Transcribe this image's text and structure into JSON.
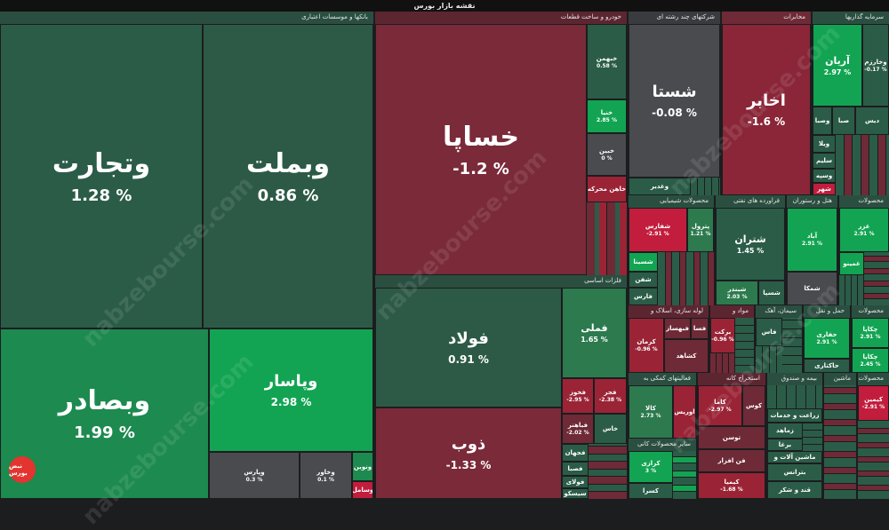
{
  "header": {
    "title": "نقشه بازار بورس"
  },
  "watermark": "nabzebourse.com",
  "logo_text": "نبض بورس",
  "colors": {
    "strong_green": "#0fa34f",
    "green": "#2c7a4e",
    "dark_green": "#2b5c48",
    "dark_red": "#6e2a36",
    "red": "#9a2436",
    "strong_red": "#c21d3c",
    "neutral": "#4a4b4f"
  },
  "sectors": {
    "banks": "بانکها و موسسات اعتباری",
    "auto": "خودرو و ساخت قطعات",
    "metals": "فلزات اساسی",
    "multi": "شرکتهای چند رشته ای",
    "telecom": "مخابرات",
    "invest": "سرمایه گذاریها",
    "chemical": "محصولات شیمیایی",
    "oil": "فراورده های نفتی",
    "hotel": "هتل و رستوران",
    "products": "محصولات",
    "pipe": "لوله سازی، اسلاک و",
    "material": "مواد و",
    "cement": "سیمان، آهک",
    "transport": "حمل و نقل",
    "products2": "محصولات",
    "auxiliary": "فعالیتهای کمکی به",
    "mining": "استخراج کانه",
    "insurance": "بیمه و صندوق",
    "machinery": "ماشین",
    "products3": "محصولات",
    "nonmetal": "سایر محصولات کانی",
    "agri": "زراعت و خدمات",
    "mach2": "ماشین آلات و",
    "sugar": "قند و شکر"
  },
  "tiles": {
    "vtejarat": {
      "name": "وتجارت",
      "chg": "1.28 %"
    },
    "vbemellat": {
      "name": "وبملت",
      "chg": "0.86 %"
    },
    "vbesader": {
      "name": "وبصادر",
      "chg": "1.99 %"
    },
    "vpasar": {
      "name": "وپاسار",
      "chg": "2.98 %"
    },
    "vpars": {
      "name": "وپارس",
      "chg": "0.3 %"
    },
    "vkhavar": {
      "name": "وخاور",
      "chg": "0.1 %"
    },
    "vnovin": {
      "name": "ونوین"
    },
    "vamal": {
      "name": "وسامل"
    },
    "khsapa": {
      "name": "خساپا",
      "chg": "-1.2 %"
    },
    "khbahman": {
      "name": "خبهمن",
      "chg": "0.58 %"
    },
    "khina": {
      "name": "خنیا",
      "chg": "2.85 %"
    },
    "khayn": {
      "name": "خبین",
      "chg": "0 %"
    },
    "khmahreke": {
      "name": "خاهن محرکه"
    },
    "foolad": {
      "name": "فولاد",
      "chg": "0.91 %"
    },
    "zob": {
      "name": "ذوب",
      "chg": "-1.33 %"
    },
    "fameli": {
      "name": "فملی",
      "chg": "1.65 %"
    },
    "fkhooz": {
      "name": "فخوز",
      "chg": "-2.95 %"
    },
    "fajr": {
      "name": "فجر",
      "chg": "-2.38 %"
    },
    "fbahonar": {
      "name": "فباهنر",
      "chg": "-2.02 %"
    },
    "khas": {
      "name": "خاس"
    },
    "fjahan": {
      "name": "فجهان"
    },
    "fsapa": {
      "name": "فصبا"
    },
    "foolai": {
      "name": "فولای"
    },
    "sisko": {
      "name": "سیسکو"
    },
    "shasta": {
      "name": "شستا",
      "chg": "-0.08 %"
    },
    "vghadir": {
      "name": "وغدیر"
    },
    "akhaber": {
      "name": "اخابر",
      "chg": "-1.6 %"
    },
    "arian": {
      "name": "آریان",
      "chg": "2.97 %"
    },
    "vkharazm": {
      "name": "وخارزم",
      "chg": "-0.17 %"
    },
    "vsapa": {
      "name": "وصبا"
    },
    "sba": {
      "name": "صبا"
    },
    "dis": {
      "name": "دیس"
    },
    "vbank": {
      "name": "وبانک"
    },
    "vayla": {
      "name": "ویلا"
    },
    "salem": {
      "name": "سلیم"
    },
    "vsoyeh": {
      "name": "وسپه"
    },
    "shahr": {
      "name": "شهر"
    },
    "shfars": {
      "name": "شفارس",
      "chg": "-2.91 %"
    },
    "patrol": {
      "name": "پترول",
      "chg": "1.21 %"
    },
    "shasina": {
      "name": "شسینا"
    },
    "shafan": {
      "name": "شفن"
    },
    "faras": {
      "name": "فارس"
    },
    "shtran": {
      "name": "شتران",
      "chg": "1.45 %"
    },
    "shbandar": {
      "name": "شبندر",
      "chg": "2.03 %"
    },
    "shsina": {
      "name": "شسپا"
    },
    "shakm": {
      "name": "شمکا"
    },
    "abad": {
      "name": "آباد",
      "chg": "2.91 %"
    },
    "ghazar": {
      "name": "غزر",
      "chg": "2.91 %"
    },
    "ghamina": {
      "name": "غمینو"
    },
    "kerman": {
      "name": "کرمان",
      "chg": "-0.96 %"
    },
    "kahsaz": {
      "name": "فبهساز"
    },
    "kasa": {
      "name": "فسا"
    },
    "kashad": {
      "name": "کشاهد"
    },
    "barakat": {
      "name": "برکت",
      "chg": "-0.96 %"
    },
    "fas": {
      "name": "فاس"
    },
    "hafari": {
      "name": "حفاری",
      "chg": "2.91 %"
    },
    "hakhtari": {
      "name": "حاکتاری"
    },
    "cheklaj": {
      "name": "چکاپا",
      "chg": "2.91 %"
    },
    "chkala": {
      "name": "چکاپا",
      "chg": "2.45 %"
    },
    "kala": {
      "name": "کالا",
      "chg": "2.73 %"
    },
    "avrais": {
      "name": "اوریس"
    },
    "kama": {
      "name": "کاما",
      "chg": "-2.97 %"
    },
    "koos": {
      "name": "کوس"
    },
    "tosan": {
      "name": "توسن"
    },
    "fafzar": {
      "name": "فن افزار"
    },
    "karazi": {
      "name": "کرازی",
      "chg": "3 %"
    },
    "kesra": {
      "name": "کسرا"
    },
    "kimia": {
      "name": "کیمیا",
      "chg": "-1.68 %"
    },
    "kimin": {
      "name": "کیمین",
      "chg": "-2.91 %"
    },
    "zamahd": {
      "name": "زماهد"
    },
    "vsamat": {
      "name": "ومسم"
    },
    "bama": {
      "name": "برغا"
    },
    "btrans": {
      "name": "بترانس"
    }
  }
}
